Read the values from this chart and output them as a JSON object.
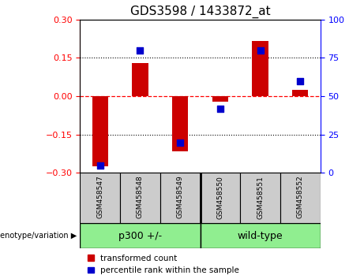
{
  "title": "GDS3598 / 1433872_at",
  "samples": [
    "GSM458547",
    "GSM458548",
    "GSM458549",
    "GSM458550",
    "GSM458551",
    "GSM458552"
  ],
  "transformed_counts": [
    -0.275,
    0.13,
    -0.215,
    -0.02,
    0.215,
    0.025
  ],
  "percentile_ranks": [
    5,
    80,
    20,
    42,
    80,
    60
  ],
  "ylim_left": [
    -0.3,
    0.3
  ],
  "ylim_right": [
    0,
    100
  ],
  "yticks_left": [
    -0.3,
    -0.15,
    0,
    0.15,
    0.3
  ],
  "yticks_right": [
    0,
    25,
    50,
    75,
    100
  ],
  "bar_color": "#CC0000",
  "dot_color": "#0000CC",
  "bar_width": 0.4,
  "dot_size": 40,
  "group_bar_color": "#90EE90",
  "sample_box_color": "#cccccc",
  "genotype_label": "genotype/variation",
  "group1_label": "p300 +/-",
  "group2_label": "wild-type",
  "legend_red": "transformed count",
  "legend_blue": "percentile rank within the sample"
}
